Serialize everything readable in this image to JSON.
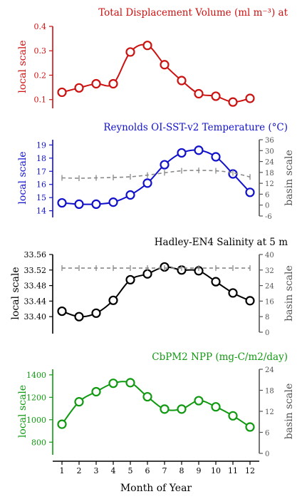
{
  "chart_data": [
    {
      "type": "line",
      "title": "Total Displacement Volume (ml m⁻³) at",
      "ylabel": "local scale",
      "y2label": "",
      "color": "#cc1111",
      "ylim": [
        0.07,
        0.4
      ],
      "yticks": [
        "0.1",
        "0.2",
        "0.3",
        "0.4"
      ],
      "ytick_values": [
        0.1,
        0.2,
        0.3,
        0.4
      ],
      "series": [
        {
          "values": [
            0.13,
            0.148,
            0.165,
            0.165,
            0.295,
            0.322,
            0.243,
            0.178,
            0.124,
            0.114,
            0.09,
            0.105
          ]
        }
      ]
    },
    {
      "type": "line",
      "title": "Reynolds OI-SST-v2 Temperature (°C)",
      "ylabel": "local scale",
      "y2label": "basin scale",
      "color": "#1111cc",
      "ylim": [
        13.6,
        19.4
      ],
      "yticks": [
        "14",
        "15",
        "16",
        "17",
        "18",
        "19"
      ],
      "ytick_values": [
        14,
        15,
        16,
        17,
        18,
        19
      ],
      "y2lim": [
        -6,
        36
      ],
      "y2ticks": [
        "-6",
        "0",
        "6",
        "12",
        "18",
        "24",
        "30",
        "36"
      ],
      "y2tick_values": [
        -6,
        0,
        6,
        12,
        18,
        24,
        30,
        36
      ],
      "series": [
        {
          "values": [
            14.6,
            14.5,
            14.5,
            14.65,
            15.2,
            16.1,
            17.5,
            18.4,
            18.6,
            18.1,
            16.8,
            15.4
          ]
        },
        {
          "axis": "basin",
          "values": [
            15,
            14.8,
            15,
            15.2,
            15.6,
            16.5,
            17.8,
            18.9,
            19.1,
            18.9,
            17.8,
            15.5
          ]
        }
      ]
    },
    {
      "type": "line",
      "title": "Hadley-EN4 Salinity at 5 m",
      "ylabel": "local scale",
      "y2label": "basin scale",
      "color": "#000000",
      "ylim": [
        33.36,
        33.56
      ],
      "yticks": [
        "33.40",
        "33.44",
        "33.48",
        "33.52",
        "33.56"
      ],
      "ytick_values": [
        33.4,
        33.44,
        33.48,
        33.52,
        33.56
      ],
      "y2lim": [
        0,
        40
      ],
      "y2ticks": [
        "0",
        "8",
        "16",
        "24",
        "32",
        "40"
      ],
      "y2tick_values": [
        0,
        8,
        16,
        24,
        32,
        40
      ],
      "series": [
        {
          "values": [
            33.414,
            33.4,
            33.409,
            33.442,
            33.495,
            33.51,
            33.528,
            33.52,
            33.518,
            33.49,
            33.461,
            33.441
          ]
        },
        {
          "axis": "basin",
          "values": [
            33,
            33,
            33,
            33,
            33,
            33,
            33,
            33,
            33,
            33,
            33,
            33
          ]
        }
      ]
    },
    {
      "type": "line",
      "title": "CbPM2 NPP (mg-C/m2/day)",
      "ylabel": "local scale",
      "y2label": "basin scale",
      "color": "#119911",
      "ylim": [
        700,
        1450
      ],
      "yticks": [
        "800",
        "1000",
        "1200",
        "1400"
      ],
      "ytick_values": [
        800,
        1000,
        1200,
        1400
      ],
      "y2lim": [
        0,
        24
      ],
      "y2ticks": [
        "0",
        "6",
        "12",
        "18",
        "24"
      ],
      "y2tick_values": [
        0,
        6,
        12,
        18,
        24
      ],
      "series": [
        {
          "values": [
            960,
            1160,
            1250,
            1325,
            1330,
            1205,
            1095,
            1095,
            1170,
            1115,
            1035,
            935
          ]
        }
      ]
    }
  ],
  "xaxis": {
    "label": "Month of Year",
    "ticks": [
      "1",
      "2",
      "3",
      "4",
      "5",
      "6",
      "7",
      "8",
      "9",
      "10",
      "11",
      "12"
    ],
    "xlim": [
      1,
      12
    ]
  },
  "colors": {
    "basin": "#888888",
    "axis": "#000000"
  }
}
